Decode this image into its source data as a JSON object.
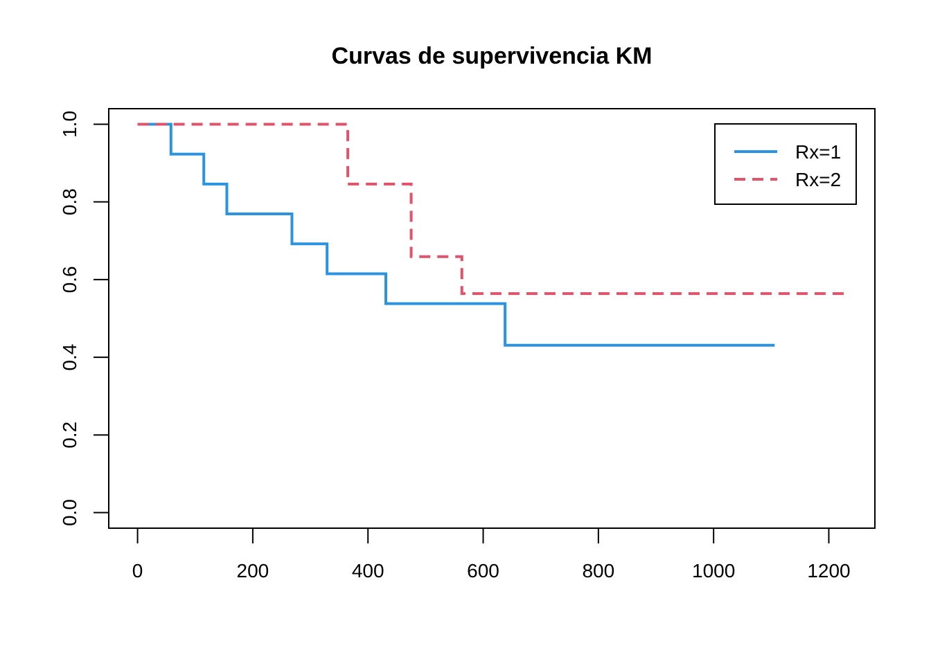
{
  "chart_data": {
    "type": "line",
    "title": "Curvas de supervivencia KM",
    "xlabel": "",
    "ylabel": "",
    "xlim": [
      -50,
      1280
    ],
    "ylim": [
      -0.04,
      1.04
    ],
    "xticks": [
      0,
      200,
      400,
      600,
      800,
      1000,
      1200
    ],
    "xtick_labels": [
      "0",
      "200",
      "400",
      "600",
      "800",
      "1000",
      "1200"
    ],
    "yticks": [
      0.0,
      0.2,
      0.4,
      0.6,
      0.8,
      1.0
    ],
    "ytick_labels": [
      "0.0",
      "0.2",
      "0.4",
      "0.6",
      "0.8",
      "1.0"
    ],
    "grid": false,
    "legend_position": "top-right",
    "step": true,
    "series": [
      {
        "name": "Rx=1",
        "color": "#2b93df",
        "line_style": "solid",
        "x": [
          0,
          58,
          115,
          155,
          268,
          329,
          431,
          638,
          1106
        ],
        "y": [
          1.0,
          0.923,
          0.846,
          0.769,
          0.692,
          0.615,
          0.538,
          0.431,
          0.431
        ]
      },
      {
        "name": "Rx=2",
        "color": "#df536b",
        "line_style": "dashed",
        "x": [
          0,
          353,
          365,
          464,
          475,
          563,
          1227
        ],
        "y": [
          1.0,
          1.0,
          0.846,
          0.846,
          0.659,
          0.564,
          0.564
        ]
      }
    ]
  }
}
